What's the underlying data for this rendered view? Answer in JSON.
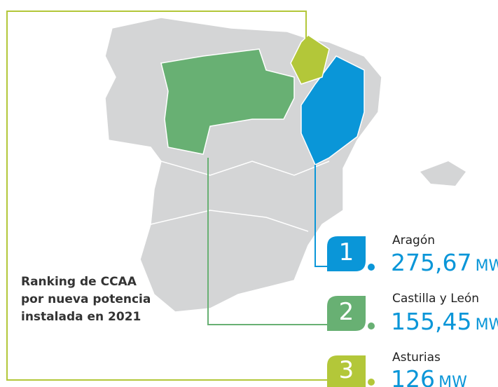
{
  "title": "Ranking de CCAA por nueva potencia instalada en 2021",
  "ranking": [
    {
      "rank": "1",
      "region": "Aragón",
      "value": "275,67",
      "unit": "MW"
    },
    {
      "rank": "2",
      "region": "Castilla y León",
      "value": "155,45",
      "unit": "MW"
    },
    {
      "rank": "3",
      "region": "Asturias",
      "value": "126",
      "unit": "MW"
    }
  ]
}
